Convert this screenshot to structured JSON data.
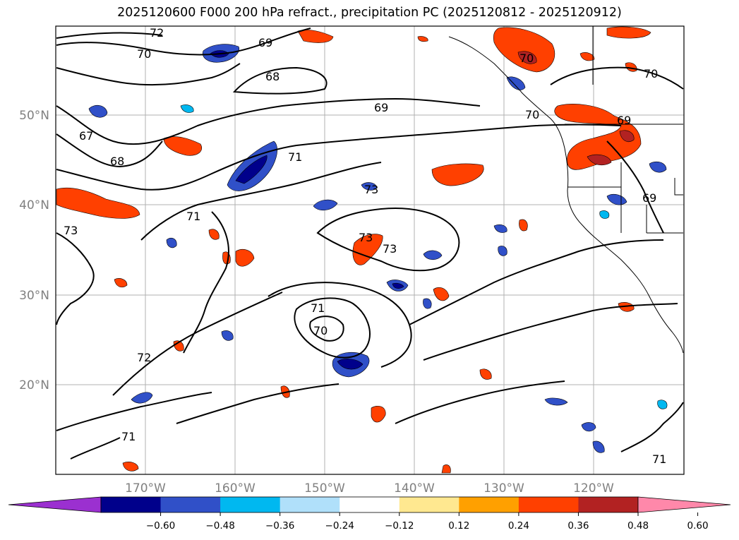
{
  "title": "2025120600 F000 200 hPa refract., precipitation PC (2025120812 - 2025120912)",
  "lat_labels": [
    "50°N",
    "40°N",
    "30°N",
    "20°N"
  ],
  "lon_labels": [
    "170°W",
    "160°W",
    "150°W",
    "140°W",
    "130°W",
    "120°W"
  ],
  "contour_labels": [
    "72",
    "70",
    "68",
    "69",
    "67",
    "68",
    "71",
    "73",
    "71",
    "73",
    "73",
    "73",
    "71",
    "70",
    "72",
    "71",
    "70",
    "70",
    "70",
    "69",
    "69",
    "69",
    "71"
  ],
  "colorbar": {
    "ticks": [
      "−0.60",
      "−0.48",
      "−0.36",
      "−0.24",
      "−0.12",
      "0.12",
      "0.24",
      "0.36",
      "0.48",
      "0.60"
    ],
    "colors": [
      "#9b30d0",
      "#00008b",
      "#3050c8",
      "#00b8f0",
      "#b0e0fa",
      "#ffffff",
      "#ffe890",
      "#ffa000",
      "#ff4000",
      "#b22222",
      "#ff88aa"
    ]
  }
}
